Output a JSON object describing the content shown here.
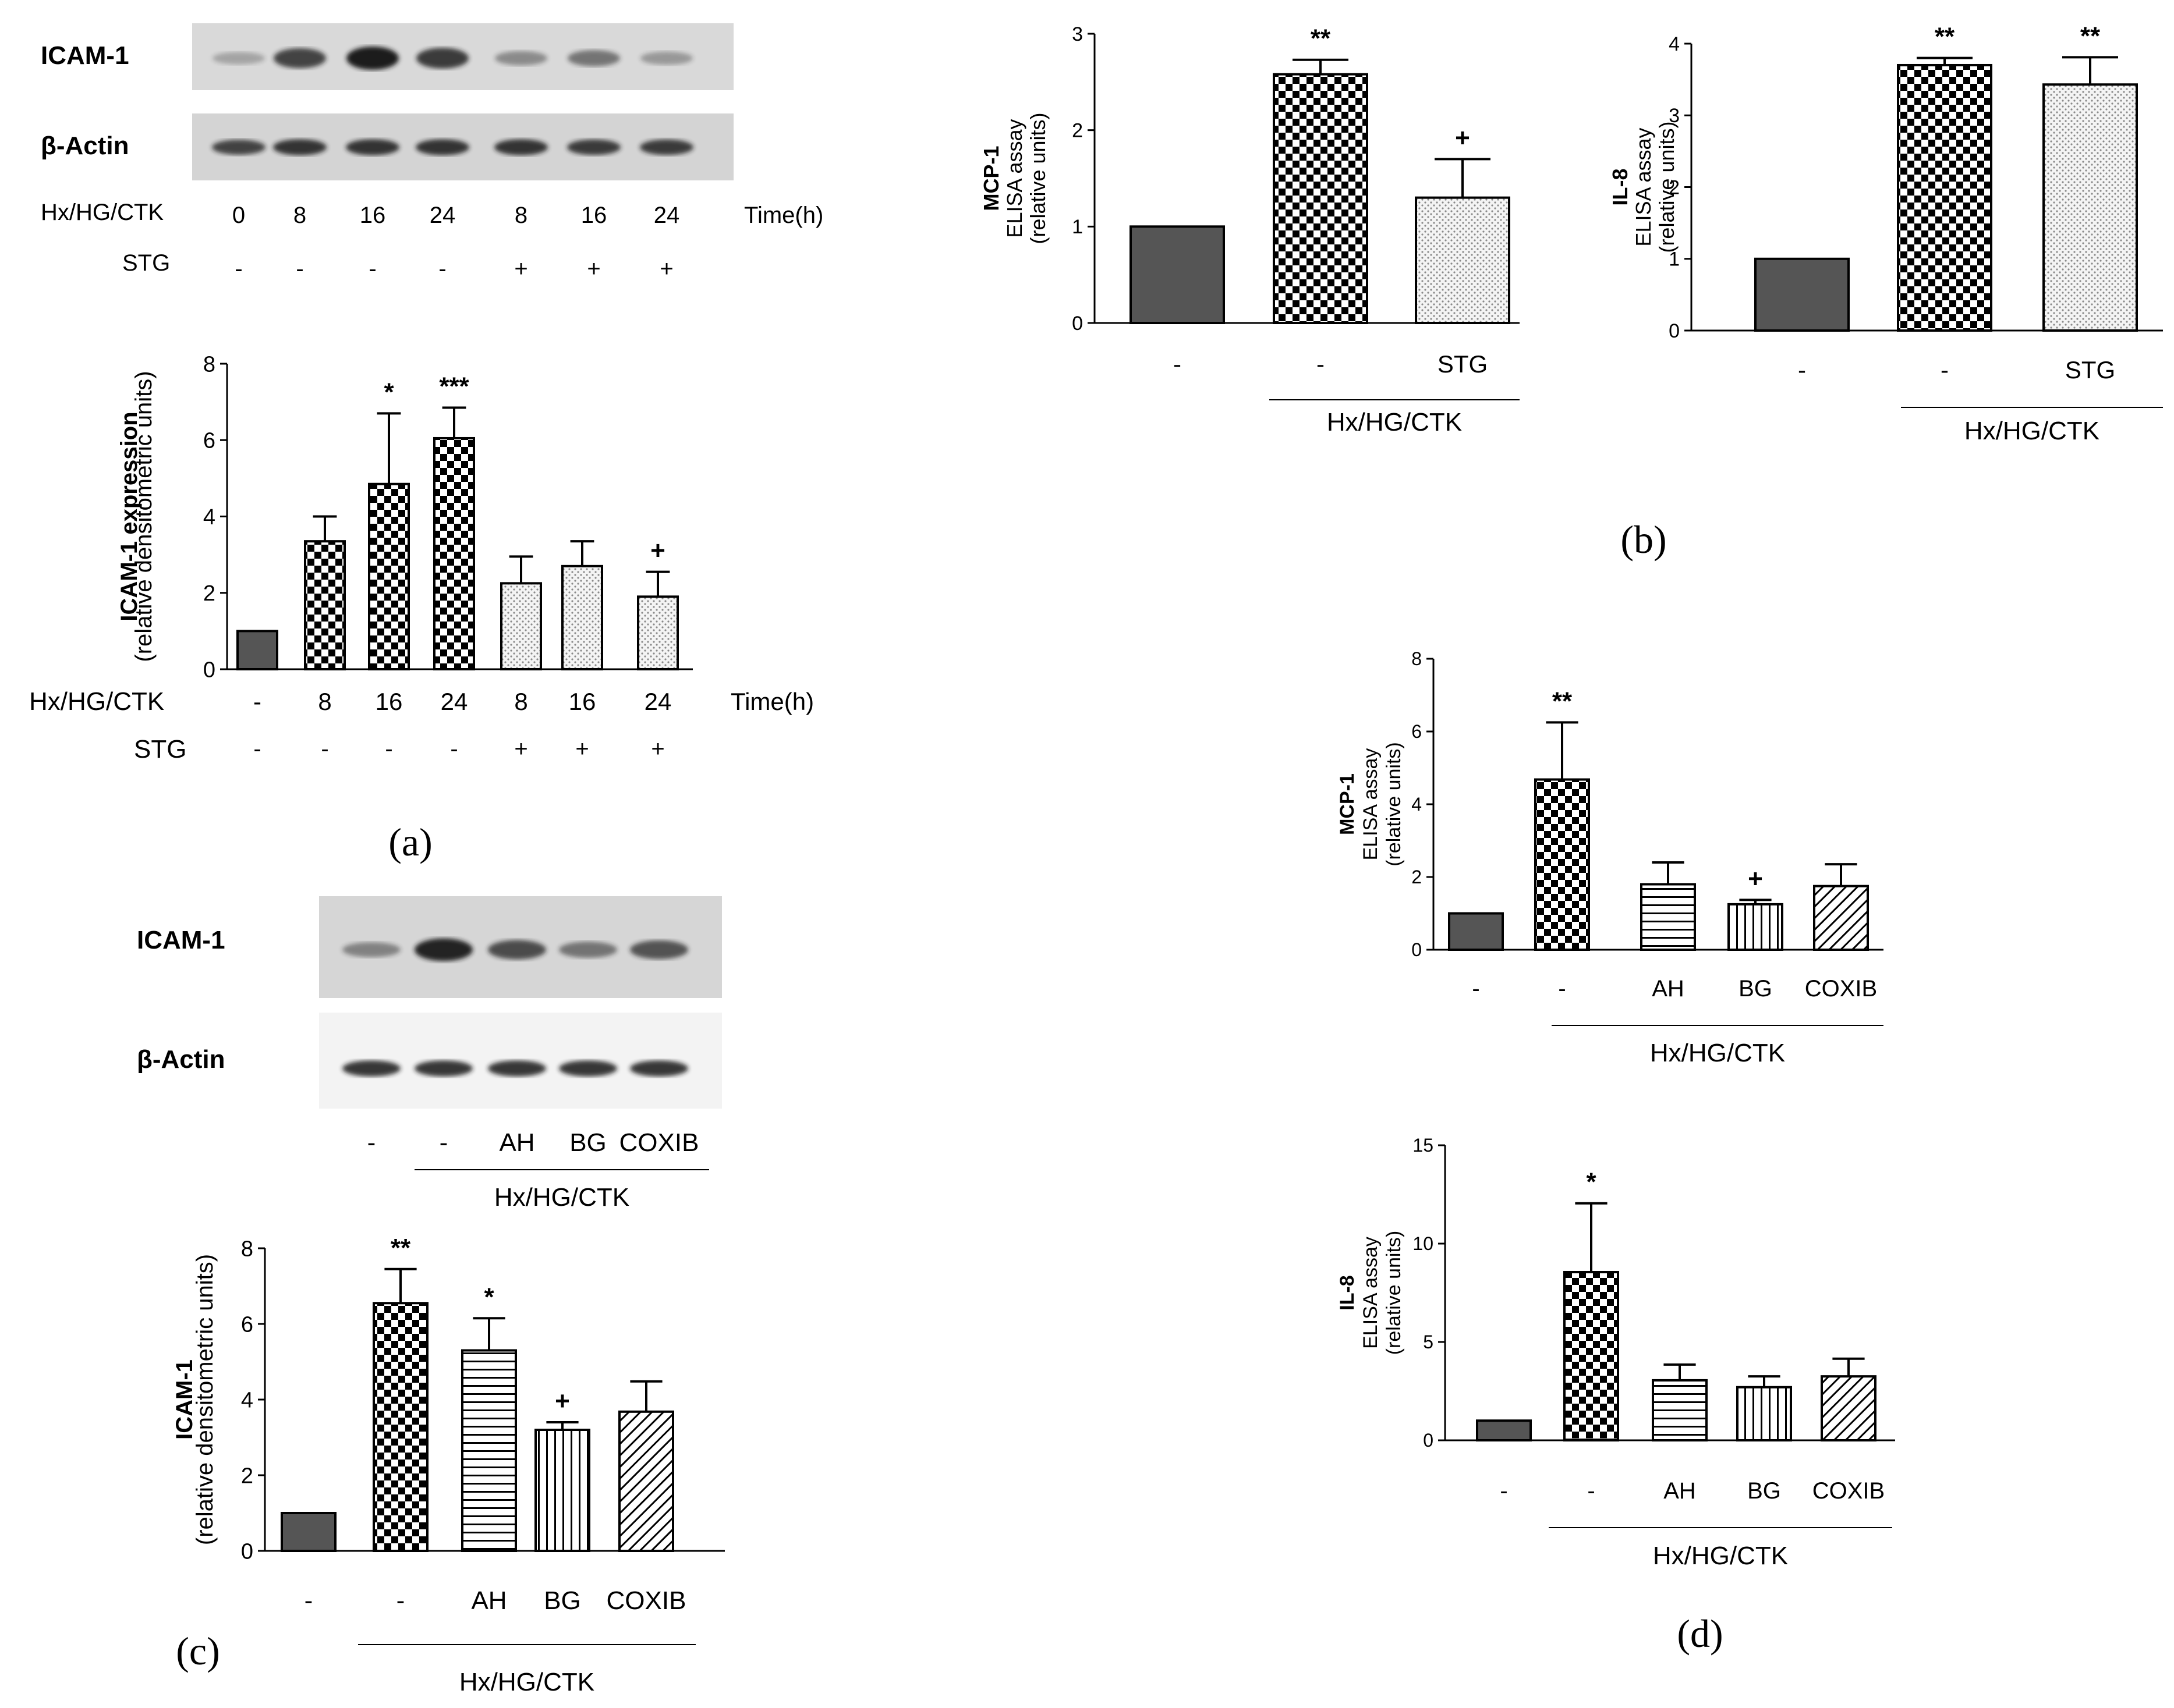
{
  "labels": {
    "icam1": "ICAM-1",
    "actin": "β-Actin",
    "treatment": "Hx/HG/CTK",
    "stg": "STG",
    "time": "Time(h)",
    "panel_a": "(a)",
    "panel_b": "(b)",
    "panel_c": "(c)",
    "panel_d": "(d)"
  },
  "colors": {
    "control": "#555555",
    "checker": "#000000",
    "dotted": "#d8d8d8",
    "blot_bg": "#dcdcdc",
    "band": "#1a1a1a"
  },
  "blots": [
    {
      "rows": [
        {
          "name": "ICAM-1",
          "intensity": [
            0.15,
            0.75,
            1.0,
            0.8,
            0.3,
            0.45,
            0.22
          ]
        },
        {
          "name": "β-Actin",
          "intensity": [
            0.75,
            0.85,
            0.85,
            0.85,
            0.85,
            0.8,
            0.8
          ]
        }
      ],
      "time_values": [
        "0",
        "8",
        "16",
        "24",
        "8",
        "16",
        "24"
      ],
      "stg_values": [
        "-",
        "-",
        "-",
        "-",
        "+",
        "+",
        "+"
      ]
    },
    {
      "rows": [
        {
          "name": "ICAM-1",
          "intensity": [
            0.35,
            0.95,
            0.7,
            0.45,
            0.65
          ]
        },
        {
          "name": "β-Actin",
          "intensity": [
            0.85,
            0.85,
            0.85,
            0.85,
            0.85
          ]
        }
      ],
      "lanes": [
        "-",
        "-",
        "AH",
        "BG",
        "COXIB"
      ],
      "group_label": "Hx/HG/CTK"
    }
  ],
  "chart_data": [
    {
      "id": "a",
      "type": "bar",
      "ylabel": "ICAM-1 expression",
      "ylabel2": "(relative densitometric units)",
      "yticks": [
        "0",
        "2",
        "4",
        "6",
        "8"
      ],
      "ylim": [
        0,
        8
      ],
      "categories": [
        "-",
        "8",
        "16",
        "24",
        "8",
        "16",
        "24"
      ],
      "values": [
        1.0,
        3.35,
        4.85,
        6.05,
        2.25,
        2.7,
        1.9
      ],
      "errors": [
        0,
        0.65,
        1.85,
        0.8,
        0.7,
        0.65,
        0.65
      ],
      "patterns": [
        "control",
        "checker",
        "checker",
        "checker",
        "dotted",
        "dotted",
        "dotted"
      ],
      "annotations": [
        "",
        "",
        "*",
        "***",
        "",
        "",
        "+"
      ],
      "row_label_1": "Hx/HG/CTK",
      "row_label_2": "STG",
      "row_suffix": "Time(h)",
      "stg_values": [
        "-",
        "-",
        "-",
        "-",
        "+",
        "+",
        "+"
      ],
      "group_label": ""
    },
    {
      "id": "b1",
      "type": "bar",
      "ylabel": "MCP-1",
      "ylabel2": "ELISA assay",
      "ylabel3": "(relative units)",
      "yticks": [
        "0",
        "1",
        "2",
        "3"
      ],
      "ylim": [
        0,
        3
      ],
      "categories": [
        "-",
        "-",
        "STG"
      ],
      "values": [
        1.0,
        2.58,
        1.3
      ],
      "errors": [
        0,
        0.15,
        0.4
      ],
      "patterns": [
        "control",
        "checker",
        "dotted"
      ],
      "annotations": [
        "",
        "**",
        "+"
      ],
      "group_label": "Hx/HG/CTK"
    },
    {
      "id": "b2",
      "type": "bar",
      "ylabel": "IL-8",
      "ylabel2": "ELISA assay",
      "ylabel3": "(relative units)",
      "yticks": [
        "0",
        "1",
        "2",
        "3",
        "4"
      ],
      "ylim": [
        0,
        4
      ],
      "categories": [
        "-",
        "-",
        "STG"
      ],
      "values": [
        1.0,
        3.7,
        3.43
      ],
      "errors": [
        0,
        0.1,
        0.38
      ],
      "patterns": [
        "control",
        "checker",
        "dotted"
      ],
      "annotations": [
        "",
        "**",
        "**"
      ],
      "group_label": "Hx/HG/CTK"
    },
    {
      "id": "c",
      "type": "bar",
      "ylabel": "ICAM-1",
      "ylabel2": "(relative densitometric units)",
      "yticks": [
        "0",
        "2",
        "4",
        "6",
        "8"
      ],
      "ylim": [
        0,
        8
      ],
      "categories": [
        "-",
        "-",
        "AH",
        "BG",
        "COXIB"
      ],
      "values": [
        1.0,
        6.55,
        5.3,
        3.2,
        3.68
      ],
      "errors": [
        0,
        0.9,
        0.85,
        0.2,
        0.8
      ],
      "patterns": [
        "control",
        "checker",
        "hlines",
        "vlines",
        "diag"
      ],
      "annotations": [
        "",
        "**",
        "*",
        "+",
        ""
      ],
      "group_label": "Hx/HG/CTK"
    },
    {
      "id": "d1",
      "type": "bar",
      "ylabel": "MCP-1",
      "ylabel2": "ELISA assay",
      "ylabel3": "(relative units)",
      "yticks": [
        "0",
        "2",
        "4",
        "6",
        "8"
      ],
      "ylim": [
        0,
        8
      ],
      "categories": [
        "-",
        "-",
        "AH",
        "BG",
        "COXIB"
      ],
      "values": [
        1.0,
        4.68,
        1.8,
        1.25,
        1.75
      ],
      "errors": [
        0,
        1.57,
        0.6,
        0.12,
        0.6
      ],
      "patterns": [
        "control",
        "checker",
        "hlines",
        "vlines",
        "diag"
      ],
      "annotations": [
        "",
        "**",
        "",
        "+",
        ""
      ],
      "group_label": "Hx/HG/CTK"
    },
    {
      "id": "d2",
      "type": "bar",
      "ylabel": "IL-8",
      "ylabel2": "ELISA assay",
      "ylabel3": "(relative units)",
      "yticks": [
        "0",
        "5",
        "10",
        "15"
      ],
      "ylim": [
        0,
        15
      ],
      "categories": [
        "-",
        "-",
        "AH",
        "BG",
        "COXIB"
      ],
      "values": [
        1.0,
        8.55,
        3.05,
        2.7,
        3.25
      ],
      "errors": [
        0,
        3.5,
        0.8,
        0.55,
        0.9
      ],
      "patterns": [
        "control",
        "checker",
        "hlines",
        "vlines",
        "diag"
      ],
      "annotations": [
        "",
        "*",
        "",
        "",
        ""
      ],
      "group_label": "Hx/HG/CTK"
    }
  ]
}
